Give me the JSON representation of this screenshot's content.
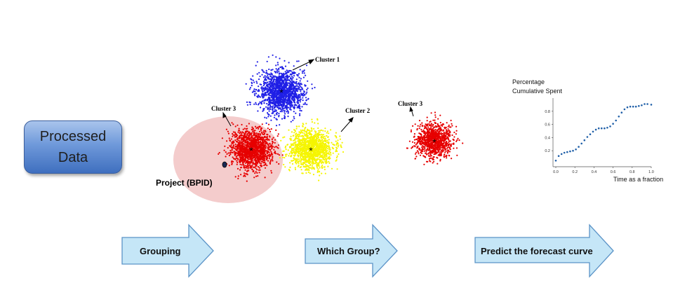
{
  "processed_box": {
    "label": "Processed\nData"
  },
  "clusters": {
    "cluster1": "Cluster 1",
    "cluster2": "Cluster 2",
    "cluster3": "Cluster 3",
    "cluster3_single": "Cluster 3"
  },
  "project_label": "Project (BPID)",
  "arrows": {
    "grouping": "Grouping",
    "which_group": "Which Group?",
    "predict": "Predict the forecast curve"
  },
  "chart_data": {
    "type": "scatter",
    "title": "",
    "ylabel": "Percentage\nCumulative Spent",
    "xlabel": "Time as a fraction",
    "xlim": [
      0.0,
      1.0
    ],
    "ylim": [
      0.0,
      1.0
    ],
    "x_ticks": [
      "0.0",
      "0.2",
      "0.4",
      "0.6",
      "0.8",
      "1.0"
    ],
    "y_ticks": [
      "0.2",
      "0.4",
      "0.6",
      "0.8"
    ],
    "series": [
      {
        "color": "#1f5fa8",
        "x": [
          0.0,
          0.03,
          0.06,
          0.09,
          0.12,
          0.15,
          0.18,
          0.21,
          0.24,
          0.27,
          0.3,
          0.33,
          0.36,
          0.39,
          0.42,
          0.45,
          0.48,
          0.51,
          0.54,
          0.57,
          0.6,
          0.63,
          0.66,
          0.69,
          0.72,
          0.75,
          0.78,
          0.81,
          0.84,
          0.87,
          0.9,
          0.93,
          0.96,
          1.0
        ],
        "y": [
          0.05,
          0.12,
          0.15,
          0.17,
          0.18,
          0.19,
          0.2,
          0.22,
          0.26,
          0.31,
          0.36,
          0.41,
          0.45,
          0.49,
          0.52,
          0.54,
          0.54,
          0.54,
          0.55,
          0.57,
          0.61,
          0.66,
          0.72,
          0.78,
          0.83,
          0.86,
          0.87,
          0.87,
          0.87,
          0.88,
          0.89,
          0.91,
          0.91,
          0.9
        ]
      }
    ]
  },
  "colors": {
    "cluster1": "#1f1fe6",
    "cluster2": "#f5f500",
    "cluster3": "#e60000",
    "project_halo": "#f3c9c9",
    "arrow_fill": "#c5e6f7",
    "arrow_stroke": "#5b93c7"
  }
}
